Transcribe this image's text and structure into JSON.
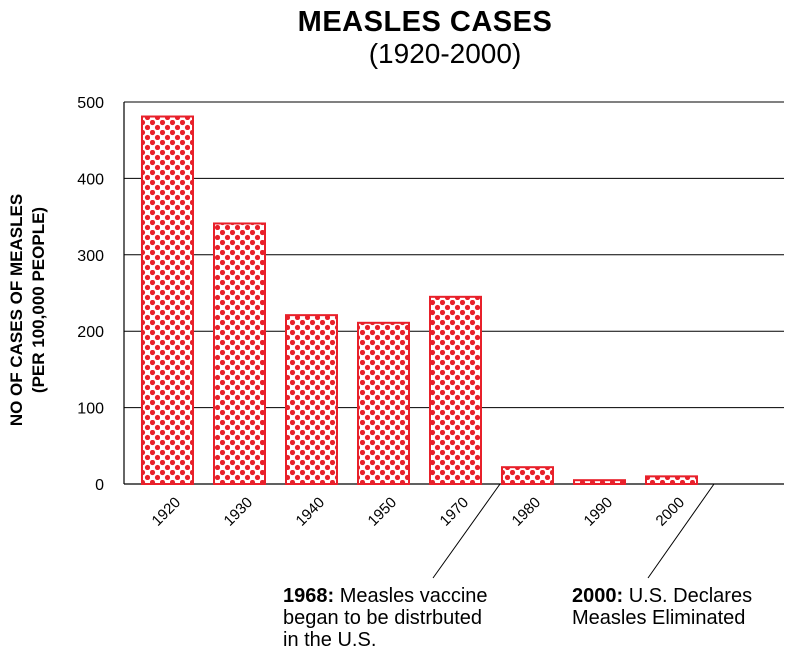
{
  "chart_data": {
    "type": "bar",
    "title": "MEASLES CASES",
    "subtitle": "(1920-2000)",
    "ylabel_line1": "NO OF CASES OF MEASLES",
    "ylabel_line2": "(PER 100,000 PEOPLE)",
    "categories": [
      "1920",
      "1930",
      "1940",
      "1950",
      "1970",
      "1980",
      "1990",
      "2000"
    ],
    "values": [
      481,
      341,
      221,
      211,
      245,
      22,
      5,
      10
    ],
    "ylim": [
      0,
      500
    ],
    "yticks": [
      0,
      100,
      200,
      300,
      400,
      500
    ],
    "grid": true,
    "bar_color": "#e8202a",
    "annotations": [
      {
        "bold": "1968:",
        "text_lines": [
          " Measles vaccine",
          "began to be distrbuted",
          "in the U.S."
        ]
      },
      {
        "bold": "2000:",
        "text_lines": [
          " U.S. Declares",
          "Measles Eliminated"
        ]
      }
    ]
  }
}
